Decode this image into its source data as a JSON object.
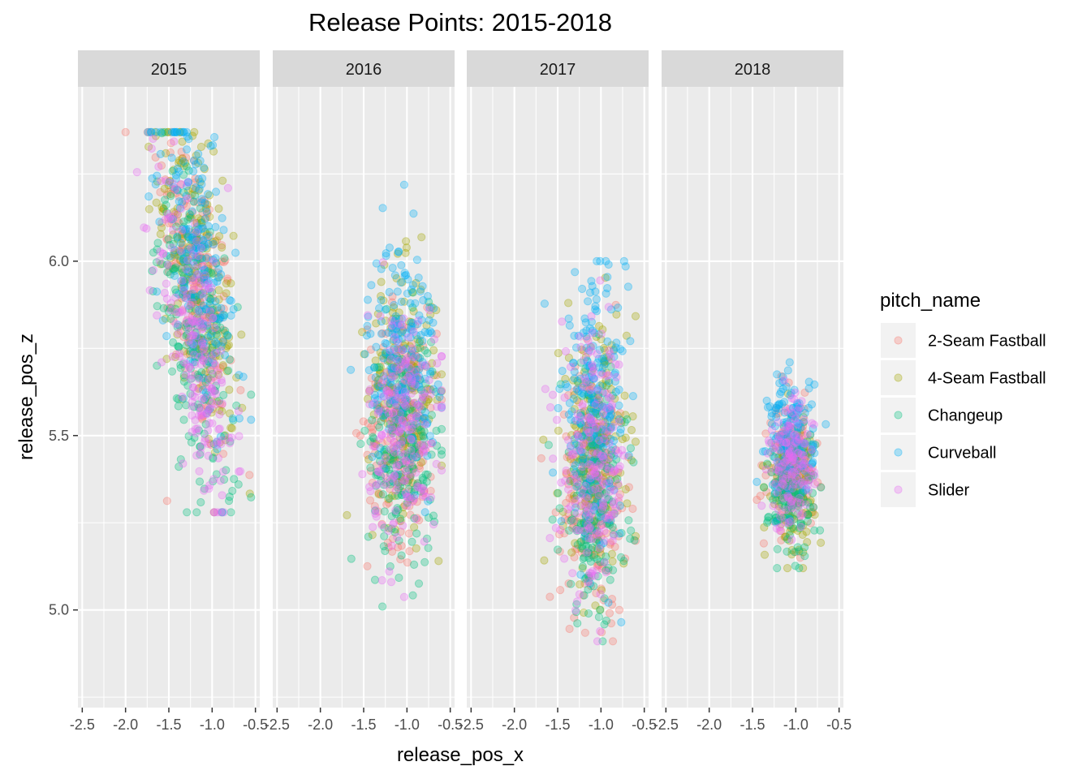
{
  "chart_data": {
    "type": "scatter",
    "title": "Release Points: 2015-2018",
    "xlabel": "release_pos_x",
    "ylabel": "release_pos_z",
    "facet_by": "year",
    "facets": [
      "2015",
      "2016",
      "2017",
      "2018"
    ],
    "xlim": [
      -2.55,
      -0.45
    ],
    "ylim": [
      4.72,
      6.5
    ],
    "x_ticks": [
      -2.5,
      -2.0,
      -1.5,
      -1.0,
      -0.5
    ],
    "x_tick_labels": [
      "-2.5",
      "-2.0",
      "-1.5",
      "-1.0",
      "-0.5"
    ],
    "y_ticks": [
      5.0,
      5.5,
      6.0
    ],
    "y_tick_labels": [
      "5.0",
      "5.5",
      "6.0"
    ],
    "grid": true,
    "point_alpha": 0.3,
    "legend": {
      "title": "pitch_name",
      "position": "right",
      "entries": [
        "2-Seam Fastball",
        "4-Seam Fastball",
        "Changeup",
        "Curveball",
        "Slider"
      ]
    },
    "series_colors": {
      "2-Seam Fastball": "#F8766D",
      "4-Seam Fastball": "#A3A500",
      "Changeup": "#00BF7D",
      "Curveball": "#00B0F6",
      "Slider": "#E76BF3"
    },
    "distributions": [
      {
        "facet": "2015",
        "x_mean": -1.18,
        "x_sd": 0.22,
        "z_mean": 5.88,
        "z_sd": 0.2,
        "slope": -0.65,
        "series_z_shift": {
          "2-Seam Fastball": 0.05,
          "4-Seam Fastball": 0.08,
          "Changeup": -0.1,
          "Curveball": 0.12,
          "Slider": -0.12
        },
        "x_range": [
          -2.0,
          -0.55
        ],
        "z_range": [
          5.28,
          6.37
        ]
      },
      {
        "facet": "2016",
        "x_mean": -1.05,
        "x_sd": 0.2,
        "z_mean": 5.58,
        "z_sd": 0.17,
        "slope": 0.0,
        "series_z_shift": {
          "2-Seam Fastball": -0.05,
          "4-Seam Fastball": 0.05,
          "Changeup": -0.12,
          "Curveball": 0.15,
          "Slider": -0.05
        },
        "x_range": [
          -2.2,
          -0.6
        ],
        "z_range": [
          4.88,
          6.3
        ]
      },
      {
        "facet": "2017",
        "x_mean": -1.08,
        "x_sd": 0.19,
        "z_mean": 5.43,
        "z_sd": 0.18,
        "slope": 0.0,
        "series_z_shift": {
          "2-Seam Fastball": -0.08,
          "4-Seam Fastball": 0.02,
          "Changeup": -0.1,
          "Curveball": 0.15,
          "Slider": -0.02
        },
        "x_range": [
          -2.05,
          -0.6
        ],
        "z_range": [
          4.91,
          6.0
        ]
      },
      {
        "facet": "2018",
        "x_mean": -1.05,
        "x_sd": 0.13,
        "z_mean": 5.4,
        "z_sd": 0.09,
        "slope": 0.0,
        "series_z_shift": {
          "2-Seam Fastball": 0.0,
          "4-Seam Fastball": -0.02,
          "Changeup": -0.07,
          "Curveball": 0.1,
          "Slider": 0.01
        },
        "x_range": [
          -1.45,
          -0.65
        ],
        "z_range": [
          5.12,
          5.71
        ]
      }
    ]
  }
}
